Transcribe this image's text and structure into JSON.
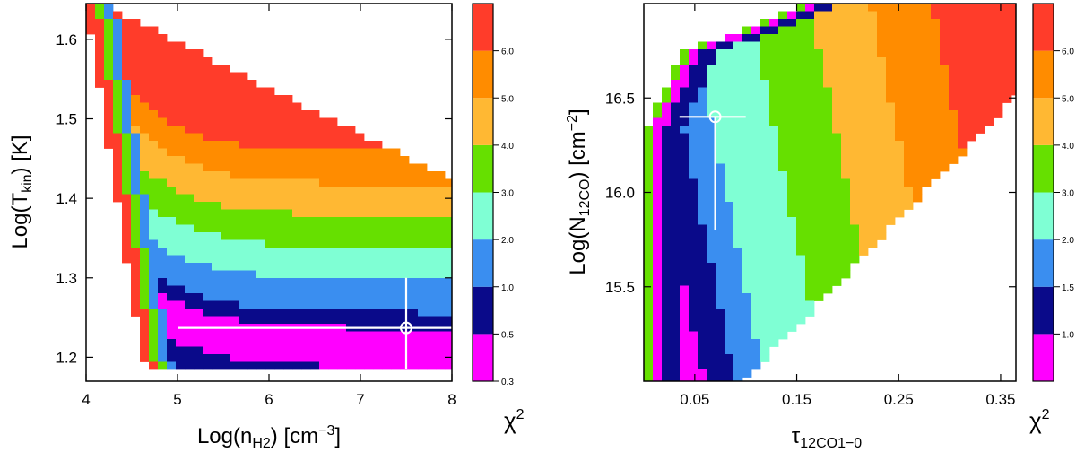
{
  "chart_data": [
    {
      "type": "heatmap",
      "name": "left-panel",
      "xlabel": "Log(n_H2) [cm^-3]",
      "ylabel": "Log(T_kin) [K]",
      "xlim": [
        4,
        8
      ],
      "ylim": [
        1.17,
        1.645
      ],
      "xticks": [
        "4",
        "5",
        "6",
        "7",
        "8"
      ],
      "xtick_values": [
        4,
        5,
        6,
        7,
        8
      ],
      "yticks": [
        "1.2",
        "1.3",
        "1.4",
        "1.5",
        "1.6"
      ],
      "ytick_values": [
        1.2,
        1.3,
        1.4,
        1.5,
        1.6
      ],
      "best_fit": {
        "x": 7.5,
        "y": 1.237,
        "x_err": [
          5.0,
          8.0
        ],
        "y_err": [
          1.185,
          1.3
        ]
      },
      "colorbar": {
        "label": "χ²",
        "range": [
          0.3,
          7.0
        ],
        "tick_labels": [
          "0.3",
          "0.5",
          "1.0",
          "2.0",
          "3.0",
          "4.0",
          "5.0",
          "6.0"
        ],
        "tick_values": [
          0.3,
          0.5,
          1.0,
          2.0,
          3.0,
          4.0,
          5.0,
          6.0
        ],
        "bands": [
          {
            "from": 0.3,
            "to": 0.5,
            "color": "#ff00ff"
          },
          {
            "from": 0.5,
            "to": 1.0,
            "color": "#0a0a8a"
          },
          {
            "from": 1.0,
            "to": 2.0,
            "color": "#3a8ef0"
          },
          {
            "from": 2.0,
            "to": 3.0,
            "color": "#7fffd4"
          },
          {
            "from": 3.0,
            "to": 4.0,
            "color": "#66e000"
          },
          {
            "from": 4.0,
            "to": 5.0,
            "color": "#ffb833"
          },
          {
            "from": 5.0,
            "to": 6.0,
            "color": "#ff8c00"
          },
          {
            "from": 6.0,
            "to": 7.0,
            "color": "#ff3c2a"
          }
        ]
      }
    },
    {
      "type": "heatmap",
      "name": "right-panel",
      "xlabel": "τ_12CO1-0",
      "ylabel": "Log(N_12CO) [cm^-2]",
      "xlim": [
        0.0,
        0.365
      ],
      "ylim": [
        15.0,
        17.0
      ],
      "xticks": [
        "0.05",
        "0.15",
        "0.25",
        "0.35"
      ],
      "xtick_values": [
        0.05,
        0.15,
        0.25,
        0.35
      ],
      "yticks": [
        "15.5",
        "16.0",
        "16.5"
      ],
      "ytick_values": [
        15.5,
        16.0,
        16.5
      ],
      "best_fit": {
        "x": 0.07,
        "y": 16.4,
        "x_err": [
          0.035,
          0.1
        ],
        "y_err": [
          15.8,
          16.4
        ]
      },
      "colorbar": {
        "label": "χ²",
        "range": [
          0.8,
          7.0
        ],
        "tick_labels": [
          "1.0",
          "1.5",
          "2.0",
          "3.0",
          "4.0",
          "5.0",
          "6.0"
        ],
        "tick_values": [
          1.0,
          1.5,
          2.0,
          3.0,
          4.0,
          5.0,
          6.0
        ],
        "bands": [
          {
            "from": 0.8,
            "to": 1.0,
            "color": "#ff00ff"
          },
          {
            "from": 1.0,
            "to": 1.5,
            "color": "#0a0a8a"
          },
          {
            "from": 1.5,
            "to": 2.0,
            "color": "#3a8ef0"
          },
          {
            "from": 2.0,
            "to": 3.0,
            "color": "#7fffd4"
          },
          {
            "from": 3.0,
            "to": 4.0,
            "color": "#66e000"
          },
          {
            "from": 4.0,
            "to": 5.0,
            "color": "#ffb833"
          },
          {
            "from": 5.0,
            "to": 6.0,
            "color": "#ff8c00"
          },
          {
            "from": 6.0,
            "to": 7.0,
            "color": "#ff3c2a"
          }
        ]
      }
    }
  ]
}
